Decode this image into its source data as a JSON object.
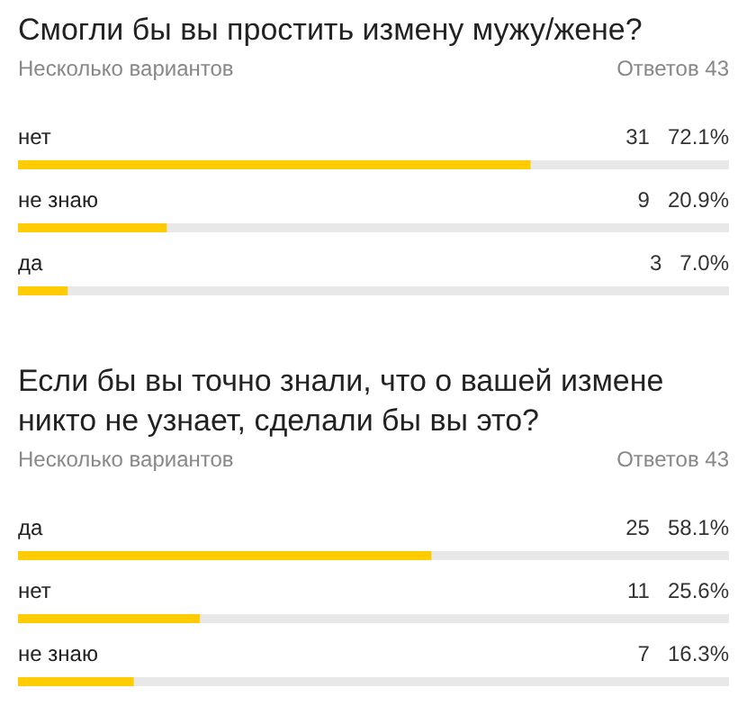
{
  "chart_data": [
    {
      "type": "bar",
      "orientation": "horizontal",
      "title": "Смогли бы вы простить измену мужу/жене?",
      "subtitle": "Несколько вариантов",
      "annotations": [
        "Ответов 43"
      ],
      "categories": [
        "нет",
        "не знаю",
        "да"
      ],
      "values": [
        31,
        9,
        3
      ],
      "value_labels": [
        "31   72.1%",
        "9   20.9%",
        "3   7.0%"
      ],
      "color": "#ffcc00",
      "xlim": [
        0,
        43
      ]
    },
    {
      "type": "bar",
      "orientation": "horizontal",
      "title": "Если бы вы точно знали, что о вашей измене никто не узнает, сделали бы вы это?",
      "subtitle": "Несколько вариантов",
      "annotations": [
        "Ответов 43"
      ],
      "categories": [
        "да",
        "нет",
        "не знаю"
      ],
      "values": [
        25,
        11,
        7
      ],
      "value_labels": [
        "25   58.1%",
        "11   25.6%",
        "7   16.3%"
      ],
      "color": "#ffcc00",
      "xlim": [
        0,
        43
      ]
    }
  ]
}
